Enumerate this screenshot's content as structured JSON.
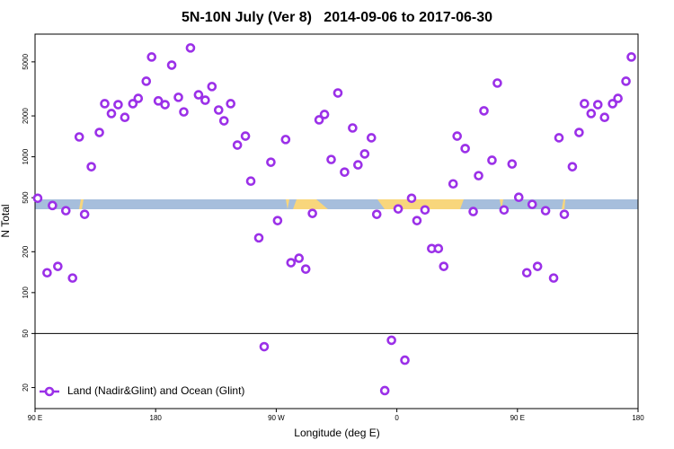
{
  "chart_data": {
    "type": "scatter",
    "title": "5N-10N July (Ver 8)   2014-09-06 to 2017-06-30",
    "x_label": "Longitude (deg E)",
    "y_label": "N Total",
    "log_y": true,
    "legend": "bottom left",
    "xlim": [
      90,
      540
    ],
    "xticks": [
      {
        "value": 90,
        "label": "90 E"
      },
      {
        "value": 180,
        "label": "180"
      },
      {
        "value": 270,
        "label": "90 W"
      },
      {
        "value": 360,
        "label": "0"
      },
      {
        "value": 450,
        "label": "90 E"
      },
      {
        "value": 540,
        "label": "180"
      }
    ],
    "ylim": [
      14,
      8000
    ],
    "yticks": [
      20,
      50,
      100,
      200,
      500,
      1000,
      2000,
      5000
    ],
    "hline": 50,
    "series": [
      {
        "name": "Land (Nadir&Glint) and Ocean (Glint)",
        "color": "#9b30e8",
        "x": [
          92,
          99,
          103,
          107,
          113,
          118,
          123,
          127,
          132,
          138,
          142,
          147,
          152,
          157,
          163,
          167,
          173,
          177,
          182,
          187,
          192,
          197,
          201,
          206,
          212,
          217,
          222,
          227,
          231,
          236,
          241,
          247,
          251,
          257,
          261,
          266,
          271,
          277,
          281,
          287,
          292,
          297,
          302,
          306,
          311,
          316,
          321,
          327,
          331,
          336,
          341,
          345,
          351,
          356,
          361,
          366,
          371,
          375,
          381,
          386,
          391,
          395,
          402,
          405,
          411,
          417,
          421,
          425,
          431,
          435,
          440,
          446,
          451,
          457,
          461,
          465,
          471,
          477,
          481,
          485,
          491,
          496,
          500,
          505,
          510,
          515,
          521,
          525,
          531,
          535
        ],
        "values": [
          495,
          140,
          438,
          156,
          401,
          128,
          1400,
          377,
          845,
          1510,
          2460,
          2080,
          2420,
          1950,
          2460,
          2690,
          3600,
          5430,
          2580,
          2420,
          4730,
          2740,
          2140,
          6330,
          2860,
          2610,
          3290,
          2210,
          1840,
          2460,
          1220,
          1420,
          662,
          253,
          40,
          912,
          339,
          1340,
          166,
          179,
          149,
          383,
          1870,
          2050,
          955,
          2950,
          771,
          1630,
          872,
          1050,
          1380,
          377,
          19,
          44.6,
          413,
          31.8,
          495,
          339,
          406,
          211,
          211,
          156,
          632,
          1420,
          1150,
          395,
          726,
          2180,
          943,
          3490,
          406,
          885,
          503,
          140,
          446,
          156,
          401,
          128,
          1380,
          377,
          845,
          1510,
          2460,
          2080,
          2420,
          1950,
          2460,
          2690,
          3600,
          5430
        ]
      }
    ]
  }
}
